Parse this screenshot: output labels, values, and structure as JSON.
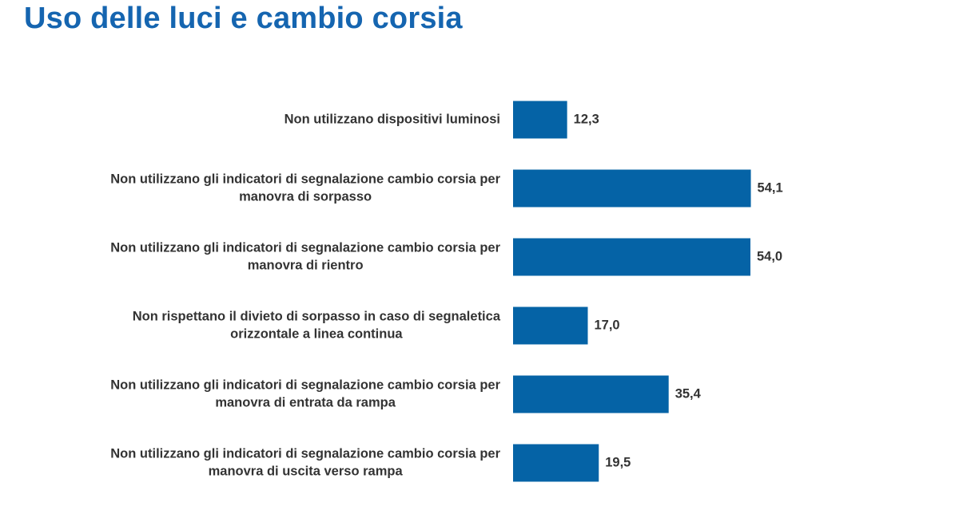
{
  "page": {
    "title": "Uso delle luci e cambio corsia"
  },
  "colors": {
    "title": "#1565b0",
    "bar": "#0563a6",
    "text": "#333333"
  },
  "chart_data": {
    "type": "bar",
    "orientation": "horizontal",
    "title": "",
    "xlabel": "",
    "ylabel": "",
    "grid": false,
    "legend": "none",
    "xlim": [
      0,
      60
    ],
    "categories": [
      [
        "Non utilizzano dispositivi luminosi"
      ],
      [
        "Non utilizzano gli indicatori di segnalazione cambio corsia per",
        "manovra di sorpasso"
      ],
      [
        "Non utilizzano gli indicatori di segnalazione cambio corsia per",
        "manovra di rientro"
      ],
      [
        "Non rispettano il divieto di sorpasso in caso di segnaletica",
        "orizzontale a linea continua"
      ],
      [
        "Non utilizzano gli indicatori di segnalazione cambio corsia per",
        "manovra di entrata da rampa"
      ],
      [
        "Non utilizzano gli indicatori di segnalazione cambio corsia per",
        "manovra di uscita verso rampa"
      ]
    ],
    "values": [
      12.3,
      54.1,
      54.0,
      17.0,
      35.4,
      19.5
    ],
    "value_labels": [
      "12,3",
      "54,1",
      "54,0",
      "17,0",
      "35,4",
      "19,5"
    ]
  }
}
